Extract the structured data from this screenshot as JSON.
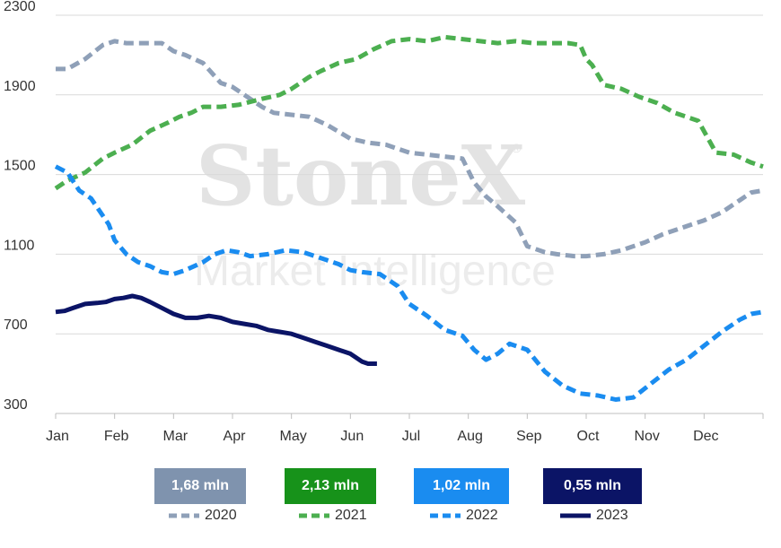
{
  "watermark": {
    "brand": "StoneX",
    "registered": "®",
    "subtitle": "Market Intelligence"
  },
  "badges": [
    {
      "text": "1,68 mln",
      "color": "#7f93ae"
    },
    {
      "text": "2,13 mln",
      "color": "#17921a"
    },
    {
      "text": "1,02 mln",
      "color": "#1a8cf0"
    },
    {
      "text": "0,55 mln",
      "color": "#0b1466"
    }
  ],
  "chart_data": {
    "type": "line",
    "title": "",
    "xlabel": "",
    "ylabel": "",
    "x_ticks": [
      "Jan",
      "Feb",
      "Mar",
      "Apr",
      "May",
      "Jun",
      "Jul",
      "Aug",
      "Sep",
      "Oct",
      "Nov",
      "Dec"
    ],
    "y_ticks": [
      300,
      700,
      1100,
      1500,
      1900,
      2300
    ],
    "xlim": [
      0,
      12
    ],
    "ylim": [
      300,
      2300
    ],
    "grid": "horizontal",
    "legend_position": "bottom",
    "series": [
      {
        "name": "2020",
        "color": "#8fa0b8",
        "style": "dashed",
        "x": [
          0,
          0.2,
          0.5,
          0.8,
          1.0,
          1.2,
          1.5,
          1.8,
          2.0,
          2.2,
          2.5,
          2.8,
          3.0,
          3.3,
          3.5,
          3.7,
          4.0,
          4.3,
          4.6,
          5.0,
          5.3,
          5.6,
          6.0,
          6.3,
          6.6,
          6.9,
          7.1,
          7.3,
          7.5,
          7.8,
          8.0,
          8.3,
          8.5,
          8.8,
          9.0,
          9.3,
          9.6,
          10.0,
          10.3,
          10.6,
          11.0,
          11.3,
          11.6,
          11.8,
          12.0
        ],
        "y": [
          2030,
          2030,
          2080,
          2150,
          2170,
          2160,
          2160,
          2160,
          2120,
          2100,
          2060,
          1960,
          1940,
          1880,
          1840,
          1810,
          1800,
          1790,
          1750,
          1680,
          1660,
          1650,
          1610,
          1600,
          1590,
          1580,
          1460,
          1390,
          1340,
          1260,
          1140,
          1110,
          1100,
          1090,
          1090,
          1100,
          1120,
          1160,
          1200,
          1230,
          1270,
          1310,
          1370,
          1410,
          1420
        ]
      },
      {
        "name": "2021",
        "color": "#4caf50",
        "style": "dashed",
        "x": [
          0,
          0.2,
          0.5,
          0.8,
          1.0,
          1.3,
          1.6,
          1.9,
          2.1,
          2.3,
          2.5,
          2.8,
          3.1,
          3.5,
          3.8,
          4.0,
          4.3,
          4.5,
          4.8,
          5.1,
          5.4,
          5.7,
          6.0,
          6.3,
          6.6,
          6.9,
          7.2,
          7.5,
          7.8,
          8.1,
          8.4,
          8.7,
          8.9,
          9.0,
          9.1,
          9.3,
          9.6,
          9.9,
          10.2,
          10.5,
          10.7,
          10.9,
          11.2,
          11.5,
          11.8,
          12.0
        ],
        "y": [
          1430,
          1470,
          1510,
          1580,
          1610,
          1650,
          1720,
          1760,
          1790,
          1810,
          1840,
          1840,
          1850,
          1880,
          1900,
          1930,
          1990,
          2020,
          2060,
          2080,
          2130,
          2170,
          2180,
          2170,
          2190,
          2180,
          2170,
          2160,
          2170,
          2160,
          2160,
          2160,
          2150,
          2080,
          2050,
          1950,
          1930,
          1890,
          1860,
          1810,
          1790,
          1770,
          1610,
          1600,
          1560,
          1540
        ]
      },
      {
        "name": "2022",
        "color": "#1a8cf0",
        "style": "dashed",
        "x": [
          0,
          0.2,
          0.4,
          0.6,
          0.9,
          1.0,
          1.2,
          1.4,
          1.6,
          1.8,
          2.0,
          2.2,
          2.5,
          2.7,
          2.9,
          3.1,
          3.3,
          3.6,
          3.9,
          4.2,
          4.5,
          4.8,
          5.0,
          5.2,
          5.5,
          5.8,
          6.0,
          6.3,
          6.6,
          6.9,
          7.1,
          7.3,
          7.5,
          7.7,
          8.0,
          8.3,
          8.6,
          8.9,
          9.2,
          9.5,
          9.8,
          10.1,
          10.4,
          10.7,
          11.0,
          11.3,
          11.6,
          11.8,
          12.0
        ],
        "y": [
          1540,
          1510,
          1420,
          1380,
          1250,
          1170,
          1100,
          1060,
          1040,
          1010,
          1000,
          1020,
          1060,
          1100,
          1120,
          1110,
          1090,
          1100,
          1120,
          1110,
          1080,
          1050,
          1020,
          1010,
          1000,
          940,
          850,
          790,
          720,
          690,
          620,
          570,
          600,
          650,
          620,
          510,
          440,
          400,
          390,
          370,
          380,
          450,
          520,
          570,
          640,
          710,
          770,
          800,
          810
        ]
      },
      {
        "name": "2023",
        "color": "#0b1466",
        "style": "solid",
        "x": [
          0,
          0.15,
          0.3,
          0.5,
          0.7,
          0.85,
          1.0,
          1.15,
          1.3,
          1.45,
          1.6,
          1.8,
          2.0,
          2.2,
          2.4,
          2.6,
          2.8,
          3.0,
          3.2,
          3.4,
          3.6,
          3.8,
          4.0,
          4.2,
          4.4,
          4.6,
          4.8,
          5.0,
          5.2,
          5.3,
          5.45
        ],
        "y": [
          810,
          815,
          830,
          850,
          855,
          860,
          875,
          880,
          890,
          880,
          860,
          830,
          800,
          780,
          780,
          790,
          780,
          760,
          750,
          740,
          720,
          710,
          700,
          680,
          660,
          640,
          620,
          600,
          560,
          550,
          550
        ]
      }
    ]
  }
}
